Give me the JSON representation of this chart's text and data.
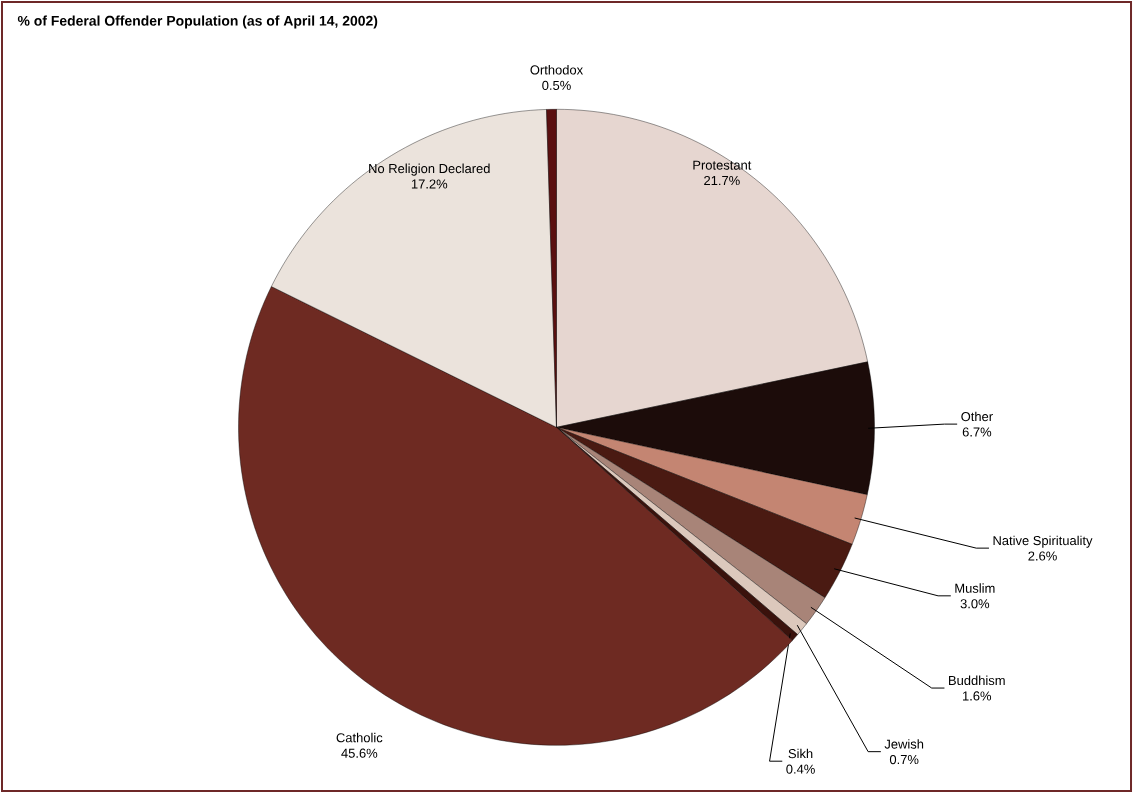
{
  "chart_data": {
    "type": "pie",
    "title": "% of Federal Offender Population (as of April 14, 2002)",
    "categories": [
      "Protestant",
      "Other",
      "Native Spirituality",
      "Muslim",
      "Buddhism",
      "Jewish",
      "Sikh",
      "Catholic",
      "No Religion Declared",
      "Orthodox"
    ],
    "values": [
      21.7,
      6.7,
      2.6,
      3.0,
      1.6,
      0.7,
      0.4,
      45.6,
      17.2,
      0.5
    ],
    "value_labels": [
      "21.7%",
      "6.7%",
      "2.6%",
      "3.0%",
      "1.6%",
      "0.7%",
      "0.4%",
      "45.6%",
      "17.2%",
      "0.5%"
    ],
    "colors": [
      "#e6d6d0",
      "#1c0c0a",
      "#c48572",
      "#4a1a12",
      "#a88478",
      "#dcc8bc",
      "#3a120c",
      "#6e2a22",
      "#ebe3dc",
      "#5a1010"
    ]
  }
}
